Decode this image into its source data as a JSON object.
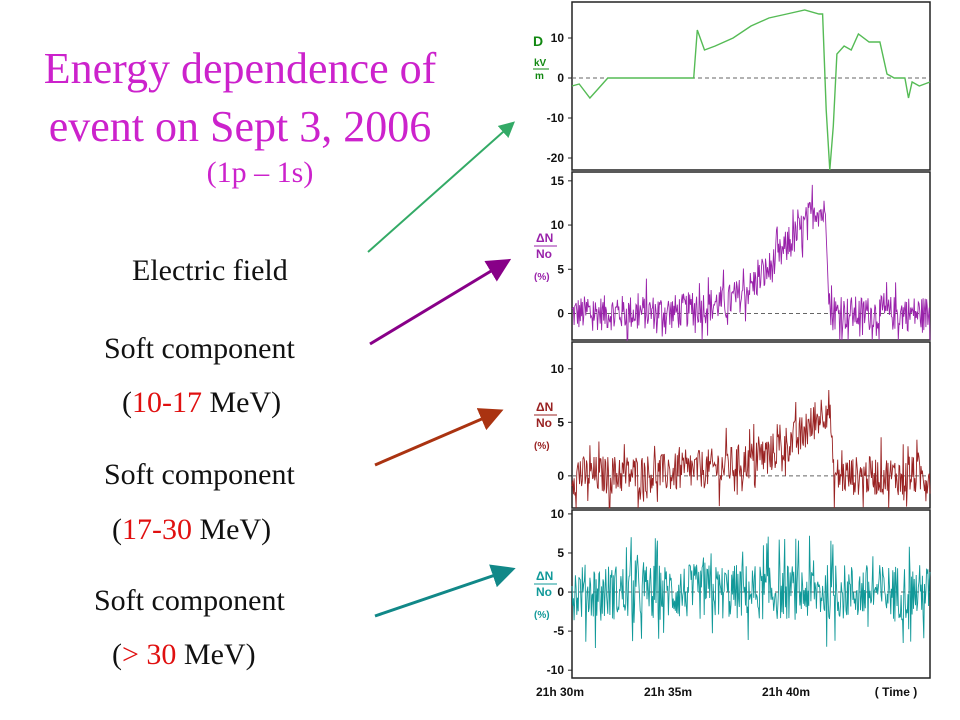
{
  "title": {
    "line1": "Energy dependence of",
    "line2": "event on Sept 3, 2006",
    "sub": "(1p – 1s)"
  },
  "labels": {
    "electric": "Electric field",
    "soft": "Soft component",
    "range1": {
      "open": "(",
      "range": "10-17",
      "rest": " MeV)"
    },
    "range2": {
      "open": "(",
      "range": "17-30",
      "rest": " MeV)"
    },
    "range3": {
      "open": "(",
      "range": "> 30",
      "rest": " MeV)"
    }
  },
  "colors": {
    "field": "#55bb55",
    "soft1": "#9922aa",
    "soft2": "#992222",
    "soft3": "#119999",
    "arrow1": "#33aa66",
    "arrow2": "#880088",
    "arrow3": "#aa3311",
    "arrow4": "#118888",
    "title": "#cc22cc",
    "highlight": "#e01010"
  },
  "chart_data": {
    "type": "line",
    "xlabels": [
      "21h 30m",
      "21h 35m",
      "21h 40m",
      "( Time )"
    ],
    "panels": [
      {
        "name": "D",
        "unit_num": "kV",
        "unit_den": "m",
        "ylim": [
          -23,
          19
        ],
        "yticks": [
          10,
          0,
          -10,
          -20
        ],
        "points": [
          [
            0,
            -2
          ],
          [
            0.02,
            -1.5
          ],
          [
            0.05,
            -5
          ],
          [
            0.07,
            -3
          ],
          [
            0.1,
            0
          ],
          [
            0.2,
            0
          ],
          [
            0.3,
            0
          ],
          [
            0.34,
            0
          ],
          [
            0.35,
            12
          ],
          [
            0.37,
            7
          ],
          [
            0.4,
            8
          ],
          [
            0.45,
            10
          ],
          [
            0.5,
            13
          ],
          [
            0.55,
            15
          ],
          [
            0.6,
            16
          ],
          [
            0.65,
            17
          ],
          [
            0.69,
            16
          ],
          [
            0.7,
            16
          ],
          [
            0.71,
            -8
          ],
          [
            0.72,
            -23
          ],
          [
            0.73,
            -12
          ],
          [
            0.74,
            6
          ],
          [
            0.76,
            8
          ],
          [
            0.78,
            7
          ],
          [
            0.8,
            11
          ],
          [
            0.83,
            9
          ],
          [
            0.86,
            9
          ],
          [
            0.88,
            1
          ],
          [
            0.9,
            0
          ],
          [
            0.93,
            0
          ],
          [
            0.94,
            -5
          ],
          [
            0.95,
            -1
          ],
          [
            0.97,
            -2
          ],
          [
            1,
            -1
          ]
        ]
      },
      {
        "name": "ΔN/No",
        "unit": "(%)",
        "ylim": [
          -3,
          16
        ],
        "yticks": [
          15,
          10,
          5,
          0
        ],
        "noise": 2.5,
        "trend": [
          [
            0,
            0
          ],
          [
            0.3,
            0.2
          ],
          [
            0.45,
            1.5
          ],
          [
            0.5,
            3
          ],
          [
            0.55,
            5
          ],
          [
            0.6,
            7.5
          ],
          [
            0.65,
            10
          ],
          [
            0.68,
            12
          ],
          [
            0.71,
            11
          ],
          [
            0.72,
            0
          ],
          [
            1,
            0
          ]
        ]
      },
      {
        "name": "ΔN/No",
        "unit": "(%)",
        "ylim": [
          -3,
          12.5
        ],
        "yticks": [
          10,
          5,
          0
        ],
        "noise": 2.3,
        "trend": [
          [
            0,
            0
          ],
          [
            0.3,
            0.3
          ],
          [
            0.45,
            1
          ],
          [
            0.55,
            2
          ],
          [
            0.6,
            3
          ],
          [
            0.65,
            4
          ],
          [
            0.7,
            6
          ],
          [
            0.72,
            6.5
          ],
          [
            0.73,
            0
          ],
          [
            1,
            0
          ]
        ]
      },
      {
        "name": "ΔN/No",
        "unit": "(%)",
        "ylim": [
          -11,
          10.5
        ],
        "yticks": [
          10,
          5,
          0,
          -5,
          -10
        ],
        "noise": 4.5,
        "trend": [
          [
            0,
            0
          ],
          [
            1,
            0
          ]
        ]
      }
    ]
  }
}
